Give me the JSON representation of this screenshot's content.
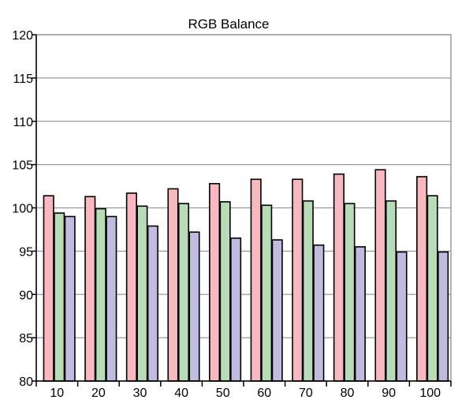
{
  "chart_data": {
    "type": "bar",
    "title": "RGB Balance",
    "xlabel": "",
    "ylabel": "",
    "categories": [
      "10",
      "20",
      "30",
      "40",
      "50",
      "60",
      "70",
      "80",
      "90",
      "100"
    ],
    "series": [
      {
        "color": "#f8b8c0",
        "values": [
          101.4,
          101.3,
          101.7,
          102.2,
          102.8,
          103.3,
          103.3,
          103.9,
          104.4,
          103.6
        ]
      },
      {
        "color": "#b8dcb8",
        "values": [
          99.4,
          99.9,
          100.2,
          100.5,
          100.7,
          100.3,
          100.8,
          100.5,
          100.8,
          101.4
        ]
      },
      {
        "color": "#c0bce0",
        "values": [
          99.0,
          99.0,
          97.9,
          97.2,
          96.5,
          96.3,
          95.7,
          95.5,
          94.9,
          94.9
        ]
      }
    ],
    "ylim": [
      80,
      120
    ],
    "yticks": [
      80,
      85,
      90,
      95,
      100,
      105,
      110,
      115,
      120
    ],
    "grid": true,
    "legend": "none"
  }
}
